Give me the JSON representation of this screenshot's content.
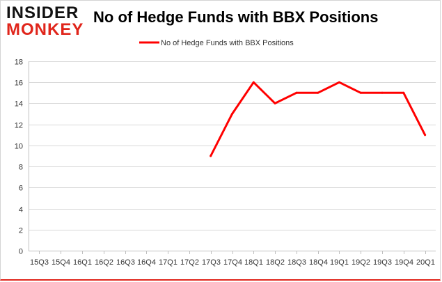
{
  "brand": {
    "line1": "INSIDER",
    "line2": "MONKEY"
  },
  "chart_data": {
    "type": "line",
    "title": "No of Hedge Funds with BBX Positions",
    "xlabel": "",
    "ylabel": "",
    "categories": [
      "15Q3",
      "15Q4",
      "16Q1",
      "16Q2",
      "16Q3",
      "16Q4",
      "17Q1",
      "17Q2",
      "17Q3",
      "17Q4",
      "18Q1",
      "18Q2",
      "18Q3",
      "18Q4",
      "19Q1",
      "19Q2",
      "19Q3",
      "19Q4",
      "20Q1"
    ],
    "series": [
      {
        "name": "No of Hedge Funds with BBX Positions",
        "color": "#ff0000",
        "values": [
          null,
          null,
          null,
          null,
          null,
          null,
          null,
          null,
          9,
          13,
          16,
          14,
          15,
          15,
          16,
          15,
          15,
          15,
          11
        ]
      }
    ],
    "ylim": [
      0,
      18
    ],
    "yticks": [
      0,
      2,
      4,
      6,
      8,
      10,
      12,
      14,
      16,
      18
    ],
    "grid": true,
    "legend": "top-center"
  }
}
